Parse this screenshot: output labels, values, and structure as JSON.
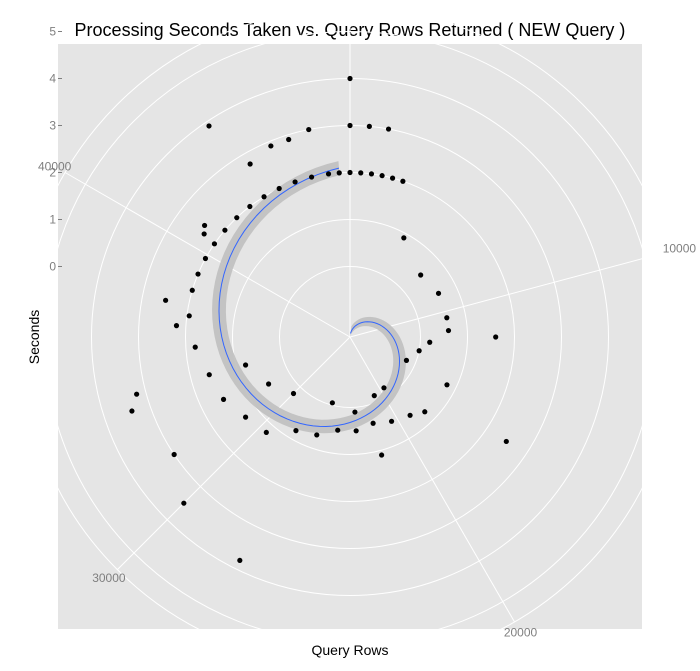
{
  "chart_data": {
    "type": "scatter",
    "coordinate_system": "polar",
    "title": "Processing Seconds Taken vs. Query Rows Returned ( NEW Query )",
    "xlabel": "Query Rows",
    "ylabel": "Seconds",
    "x_range": [
      0,
      48000
    ],
    "y_range": [
      -1.5,
      5.5
    ],
    "radial_ticks": [
      0,
      1,
      2,
      3,
      4,
      5
    ],
    "angular_ticks": [
      10000,
      20000,
      30000,
      40000
    ],
    "grid": true,
    "smooth_line": {
      "method": "loess",
      "color": "#3366ff",
      "band": true
    },
    "points": [
      [
        0,
        2.0
      ],
      [
        500,
        2.0
      ],
      [
        1000,
        2.0
      ],
      [
        1500,
        2.0
      ],
      [
        2000,
        2.0
      ],
      [
        2500,
        2.0
      ],
      [
        0,
        3.0
      ],
      [
        700,
        3.0
      ],
      [
        1400,
        3.0
      ],
      [
        0,
        4.0
      ],
      [
        3800,
        0.9
      ],
      [
        6500,
        0.5
      ],
      [
        8500,
        0.6
      ],
      [
        10500,
        0.6
      ],
      [
        11500,
        0.6
      ],
      [
        12500,
        0.2
      ],
      [
        13500,
        0.0
      ],
      [
        15000,
        -0.2
      ],
      [
        12000,
        1.6
      ],
      [
        19500,
        -0.2
      ],
      [
        21000,
        -0.15
      ],
      [
        23500,
        0.1
      ],
      [
        26000,
        -0.05
      ],
      [
        30000,
        0.2
      ],
      [
        32000,
        0.5
      ],
      [
        34000,
        0.8
      ],
      [
        19000,
        0.6
      ],
      [
        20500,
        0.5
      ],
      [
        22000,
        0.4
      ],
      [
        23500,
        0.5
      ],
      [
        25000,
        0.5
      ],
      [
        26500,
        0.7
      ],
      [
        28000,
        0.8
      ],
      [
        29500,
        1.2
      ],
      [
        31000,
        1.3
      ],
      [
        32500,
        1.5
      ],
      [
        34000,
        1.6
      ],
      [
        35500,
        1.8
      ],
      [
        37000,
        1.95
      ],
      [
        38200,
        2.0
      ],
      [
        39000,
        2.0
      ],
      [
        39800,
        2.0
      ],
      [
        40600,
        2.0
      ],
      [
        41400,
        2.0
      ],
      [
        42200,
        2.0
      ],
      [
        43000,
        2.0
      ],
      [
        43800,
        2.0
      ],
      [
        44600,
        2.0
      ],
      [
        45400,
        2.0
      ],
      [
        46200,
        2.0
      ],
      [
        47000,
        2.0
      ],
      [
        47500,
        2.0
      ],
      [
        41000,
        2.4
      ],
      [
        40700,
        2.3
      ],
      [
        44000,
        2.75
      ],
      [
        45000,
        2.9
      ],
      [
        45700,
        2.9
      ],
      [
        46500,
        3.0
      ],
      [
        43500,
        3.9
      ],
      [
        31500,
        3.0
      ],
      [
        33500,
        3.4
      ],
      [
        30000,
        3.5
      ],
      [
        27500,
        3.8
      ],
      [
        34000,
        3.2
      ],
      [
        37500,
        2.5
      ],
      [
        36500,
        2.2
      ],
      [
        22000,
        1.1
      ],
      [
        18000,
        0.75
      ],
      [
        15500,
        0.8
      ],
      [
        16500,
        2.5
      ]
    ]
  }
}
